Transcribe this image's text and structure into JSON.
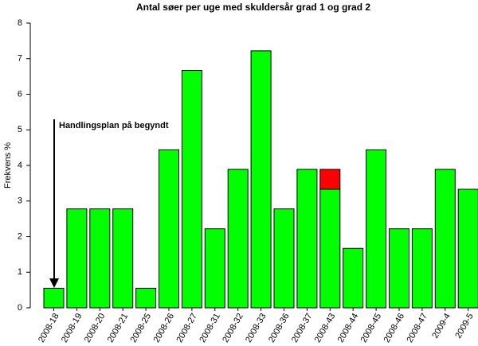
{
  "chart_data": {
    "type": "bar",
    "title": "Antal søer per uge med skuldersår grad 1 og grad 2",
    "y_label": "Frekvens %",
    "annotation": "Handlingsplan på begyndt",
    "categories": [
      "2008-18",
      "2008-19",
      "2008-20",
      "2008-21",
      "2008-25",
      "2008-26",
      "2008-27",
      "2008-31",
      "2008-32",
      "2008-33",
      "2008-36",
      "2008-37",
      "2008-43",
      "2008-44",
      "2008-45",
      "2008-46",
      "2008-47",
      "2009-4",
      "2009-5"
    ],
    "series": [
      {
        "color": "#00ff00",
        "values": [
          0.55,
          2.78,
          2.78,
          2.78,
          0.55,
          4.44,
          6.67,
          2.22,
          3.89,
          7.22,
          2.78,
          3.89,
          3.33,
          1.67,
          4.44,
          2.22,
          2.22,
          3.89,
          3.33
        ]
      },
      {
        "color": "#ff0000",
        "values": [
          null,
          null,
          null,
          null,
          null,
          null,
          null,
          null,
          null,
          null,
          null,
          null,
          0.56,
          null,
          null,
          null,
          null,
          null,
          null
        ]
      }
    ],
    "stacked": true,
    "ylim": [
      0,
      8
    ],
    "yticks": [
      0,
      1,
      2,
      3,
      4,
      5,
      6,
      7,
      8
    ],
    "grid": false
  }
}
